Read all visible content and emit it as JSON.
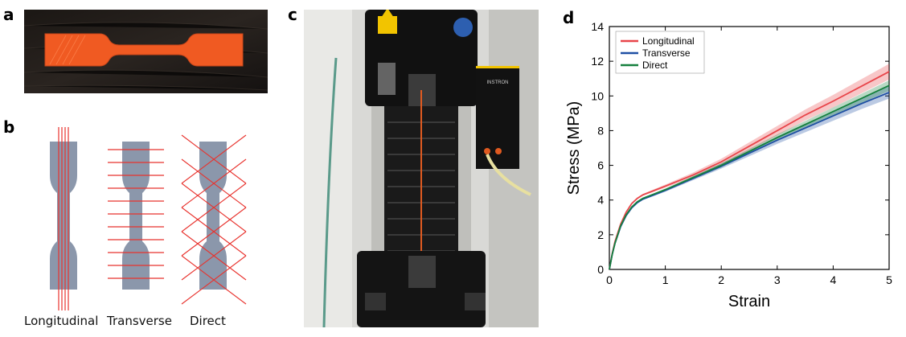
{
  "panels": {
    "a": {
      "letter": "a"
    },
    "b": {
      "letter": "b",
      "labels": [
        "Longitudinal",
        "Transverse",
        "Direct"
      ]
    },
    "c": {
      "letter": "c",
      "machine_text": "INSTRON"
    },
    "d": {
      "letter": "d"
    }
  },
  "colors": {
    "specimen": "#f05a22",
    "dogbone_fill": "#8b97ab",
    "pattern_line": "#e8332e",
    "longitudinal": "#e8454a",
    "transverse": "#1f4fa3",
    "direct": "#15803d"
  },
  "chart_data": {
    "type": "line",
    "xlabel": "Strain",
    "ylabel": "Stress (MPa)",
    "xlim": [
      0,
      5
    ],
    "ylim": [
      0,
      14
    ],
    "xticks": [
      "0",
      "1",
      "2",
      "3",
      "4",
      "5"
    ],
    "yticks": [
      "0",
      "2",
      "4",
      "6",
      "8",
      "10",
      "12",
      "14"
    ],
    "grid": false,
    "legend_position": "top-left",
    "series": [
      {
        "name": "Longitudinal",
        "color": "#e8454a",
        "x": [
          0,
          0.05,
          0.1,
          0.2,
          0.3,
          0.4,
          0.5,
          0.6,
          0.8,
          1.0,
          1.5,
          2.0,
          2.5,
          3.0,
          3.5,
          4.0,
          4.5,
          5.0
        ],
        "y": [
          0,
          0.9,
          1.6,
          2.6,
          3.3,
          3.8,
          4.1,
          4.3,
          4.55,
          4.8,
          5.45,
          6.2,
          7.1,
          8.0,
          8.9,
          9.7,
          10.55,
          11.4
        ],
        "band": 0.45
      },
      {
        "name": "Transverse",
        "color": "#1f4fa3",
        "x": [
          0,
          0.05,
          0.1,
          0.2,
          0.3,
          0.4,
          0.5,
          0.6,
          0.8,
          1.0,
          1.5,
          2.0,
          2.5,
          3.0,
          3.5,
          4.0,
          4.5,
          5.0
        ],
        "y": [
          0,
          0.85,
          1.5,
          2.45,
          3.1,
          3.55,
          3.85,
          4.05,
          4.3,
          4.55,
          5.25,
          5.95,
          6.7,
          7.45,
          8.15,
          8.85,
          9.55,
          10.2
        ],
        "band": 0.35
      },
      {
        "name": "Direct",
        "color": "#15803d",
        "x": [
          0,
          0.05,
          0.1,
          0.2,
          0.3,
          0.4,
          0.5,
          0.6,
          0.8,
          1.0,
          1.5,
          2.0,
          2.5,
          3.0,
          3.5,
          4.0,
          4.5,
          5.0
        ],
        "y": [
          0,
          0.85,
          1.5,
          2.5,
          3.15,
          3.6,
          3.9,
          4.1,
          4.35,
          4.6,
          5.3,
          6.0,
          6.8,
          7.6,
          8.35,
          9.1,
          9.85,
          10.6
        ],
        "band": 0.3
      }
    ]
  }
}
